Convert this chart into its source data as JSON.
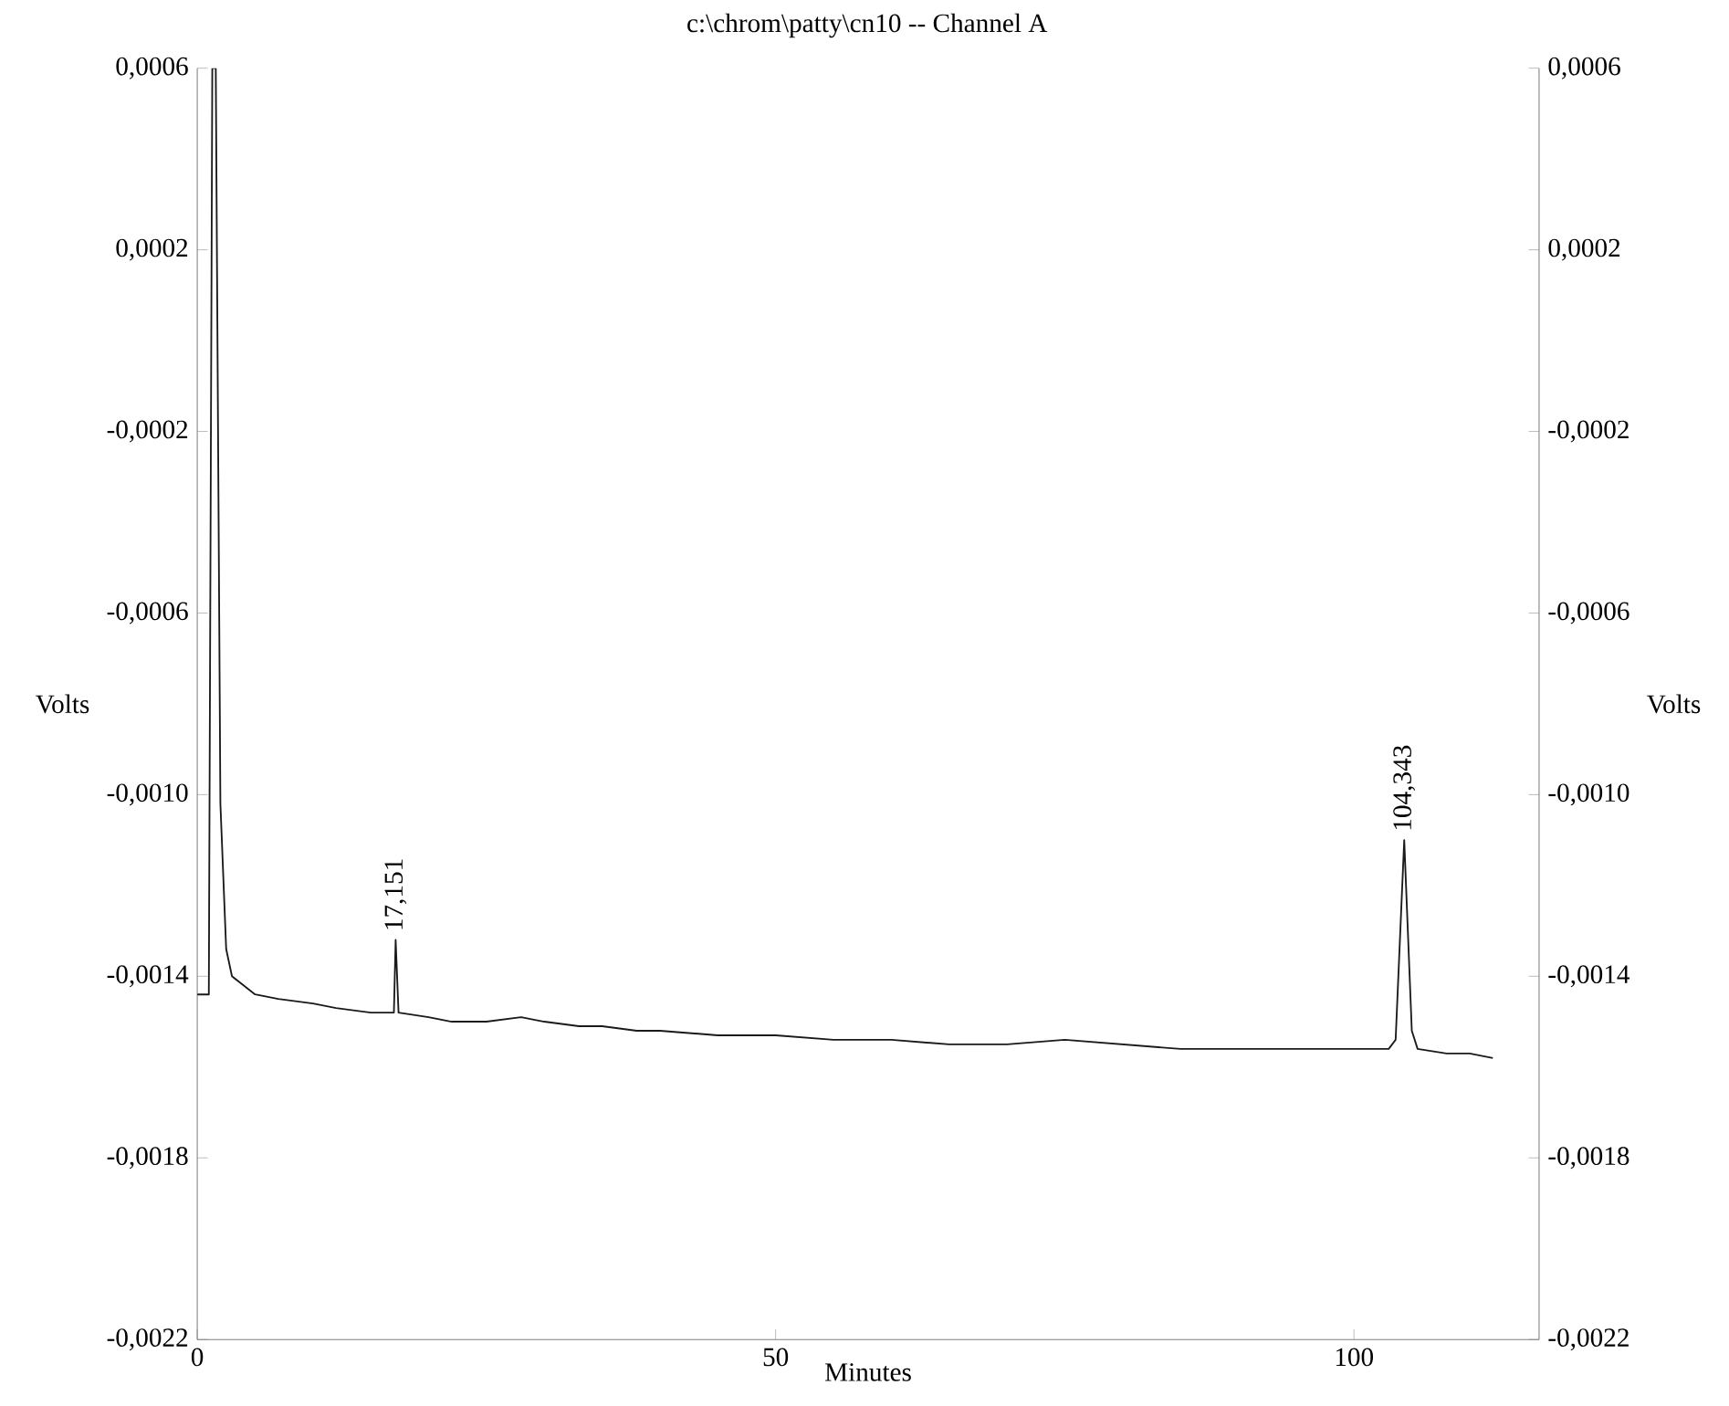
{
  "chart_data": {
    "type": "line",
    "title": "c:\\chrom\\patty\\cn10 -- Channel A",
    "xlabel": "Minutes",
    "ylabel": "Volts",
    "y2label": "Volts",
    "x": [
      0,
      1.0,
      1.3,
      1.6,
      2.0,
      2.5,
      3,
      4,
      5,
      7,
      10,
      12,
      15,
      17.0,
      17.151,
      17.4,
      20,
      22,
      25,
      28,
      30,
      33,
      35,
      38,
      40,
      45,
      50,
      55,
      60,
      65,
      70,
      75,
      80,
      85,
      90,
      95,
      100,
      103,
      103.6,
      104.343,
      105,
      105.5,
      108,
      110,
      112
    ],
    "values": [
      -0.00144,
      -0.00144,
      0.0006,
      0.0006,
      -0.00102,
      -0.00134,
      -0.0014,
      -0.00142,
      -0.00144,
      -0.00145,
      -0.00146,
      -0.00147,
      -0.00148,
      -0.00148,
      -0.00132,
      -0.00148,
      -0.00149,
      -0.0015,
      -0.0015,
      -0.00149,
      -0.0015,
      -0.00151,
      -0.00151,
      -0.00152,
      -0.00152,
      -0.00153,
      -0.00153,
      -0.00154,
      -0.00154,
      -0.00155,
      -0.00155,
      -0.00154,
      -0.00155,
      -0.00156,
      -0.00156,
      -0.00156,
      -0.00156,
      -0.00156,
      -0.00154,
      -0.0011,
      -0.00152,
      -0.00156,
      -0.00157,
      -0.00157,
      -0.00158
    ],
    "color": "#1a1a1a",
    "xlim": [
      0,
      116
    ],
    "xticks": [
      0,
      50,
      100
    ],
    "ylim": [
      -0.0022,
      0.0006
    ],
    "yticks": [
      {
        "value": 0.0006,
        "label": "0,0006"
      },
      {
        "value": 0.0002,
        "label": "0,0002"
      },
      {
        "value": -0.0002,
        "label": "-0,0002"
      },
      {
        "value": -0.0006,
        "label": "-0,0006"
      },
      {
        "value": -0.001,
        "label": "-0,0010"
      },
      {
        "value": -0.0014,
        "label": "-0,0014"
      },
      {
        "value": -0.0018,
        "label": "-0,0018"
      },
      {
        "value": -0.0022,
        "label": "-0,0022"
      }
    ],
    "y2lim": [
      -0.0022,
      0.0006
    ],
    "y2ticks": [
      {
        "value": 0.0006,
        "label": "0,0006"
      },
      {
        "value": 0.0002,
        "label": "0,0002"
      },
      {
        "value": -0.0002,
        "label": "-0,0002"
      },
      {
        "value": -0.0006,
        "label": "-0,0006"
      },
      {
        "value": -0.001,
        "label": "-0,0010"
      },
      {
        "value": -0.0014,
        "label": "-0,0014"
      },
      {
        "value": -0.0018,
        "label": "-0,0018"
      },
      {
        "value": -0.0022,
        "label": "-0,0022"
      }
    ],
    "annotations": [
      {
        "text": "17,151",
        "x": 17.151,
        "y": -0.00132
      },
      {
        "text": "104,343",
        "x": 104.343,
        "y": -0.0011
      }
    ]
  }
}
